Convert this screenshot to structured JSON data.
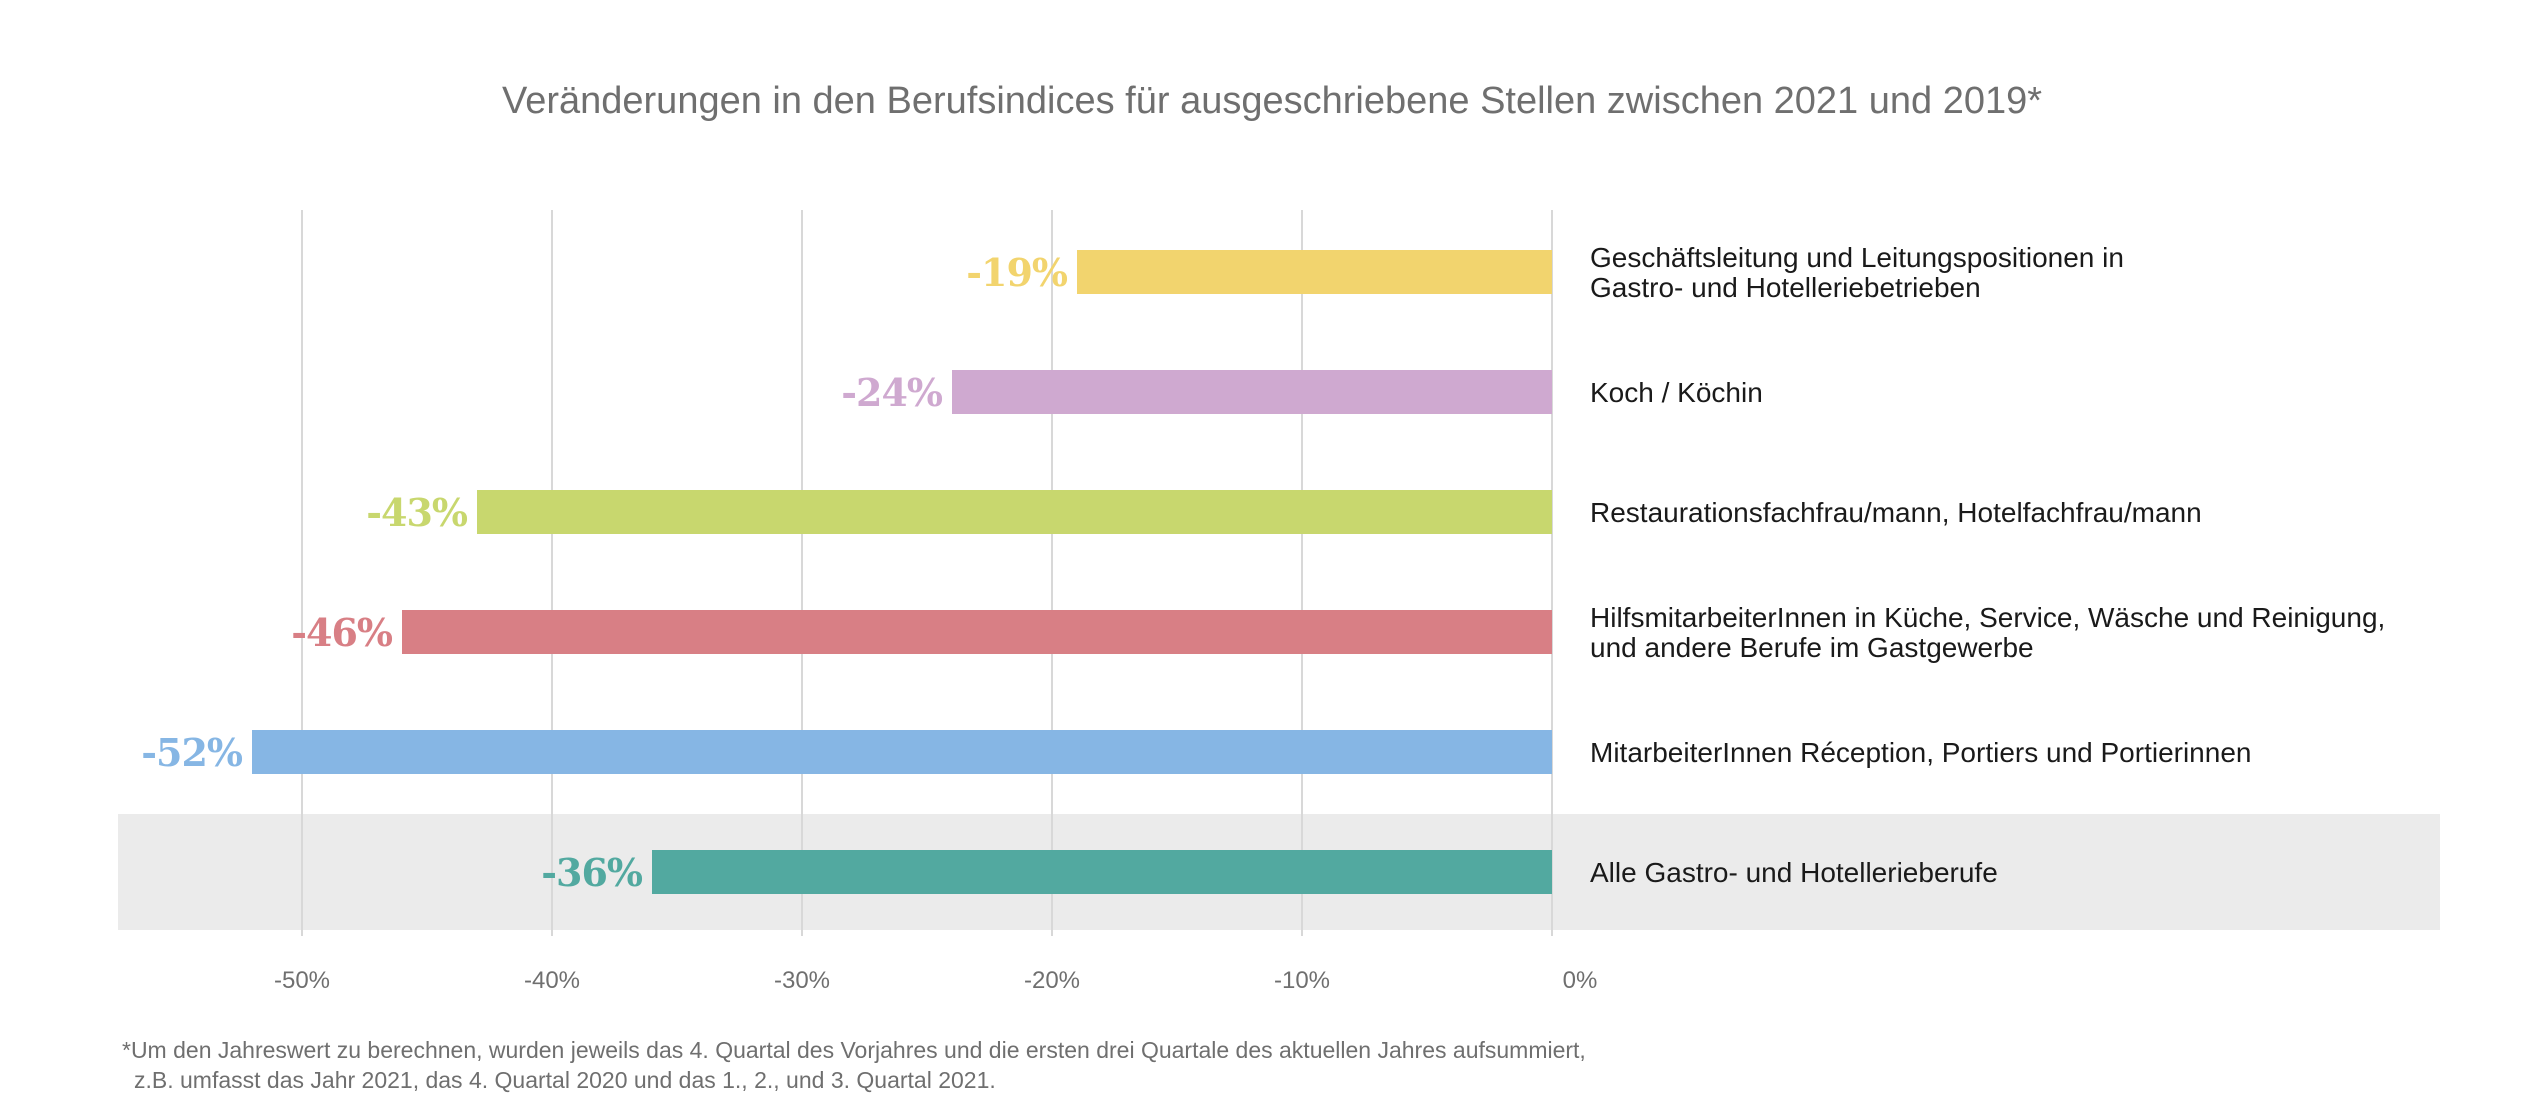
{
  "chart_data": {
    "type": "bar",
    "orientation": "horizontal",
    "title": "Veränderungen in den Berufsindices für ausgeschriebene Stellen zwischen 2021 und 2019*",
    "xlim": [
      -57.6,
      0
    ],
    "x_ticks": [
      -50,
      -40,
      -30,
      -20,
      -10,
      0
    ],
    "x_tick_labels": [
      "-50%",
      "-40%",
      "-30%",
      "-20%",
      "-10%",
      "0%"
    ],
    "grid": true,
    "categories": [
      {
        "lines": [
          "Geschäftsleitung und Leitungspositionen in",
          "Gastro- und Hotelleriebetrieben"
        ],
        "value": -19,
        "value_label": "-19%",
        "color": "#f2d46e",
        "highlight": false
      },
      {
        "lines": [
          "Koch / Köchin"
        ],
        "value": -24,
        "value_label": "-24%",
        "color": "#cfa9d0",
        "highlight": false
      },
      {
        "lines": [
          "Restaurationsfachfrau/mann, Hotelfachfrau/mann"
        ],
        "value": -43,
        "value_label": "-43%",
        "color": "#c8d76e",
        "highlight": false
      },
      {
        "lines": [
          "HilfsmitarbeiterInnen in Küche, Service, Wäsche und Reinigung,",
          "und andere Berufe im Gastgewerbe"
        ],
        "value": -46,
        "value_label": "-46%",
        "color": "#d87f85",
        "highlight": false
      },
      {
        "lines": [
          "MitarbeiterInnen Réception, Portiers und Portierinnen"
        ],
        "value": -52,
        "value_label": "-52%",
        "color": "#86b6e4",
        "highlight": false
      },
      {
        "lines": [
          "Alle Gastro- und Hotellerieberufe"
        ],
        "value": -36,
        "value_label": "-36%",
        "color": "#52a9a0",
        "highlight": true
      }
    ],
    "highlight_color": "#ebebeb"
  },
  "footnote": {
    "line1": "*Um den Jahreswert zu berechnen, wurden jeweils das 4. Quartal des Vorjahres und die ersten drei Quartale des aktuellen Jahres aufsummiert,",
    "line2": "z.B. umfasst das Jahr 2021, das 4. Quartal 2020 und das 1., 2., und 3. Quartal 2021."
  }
}
